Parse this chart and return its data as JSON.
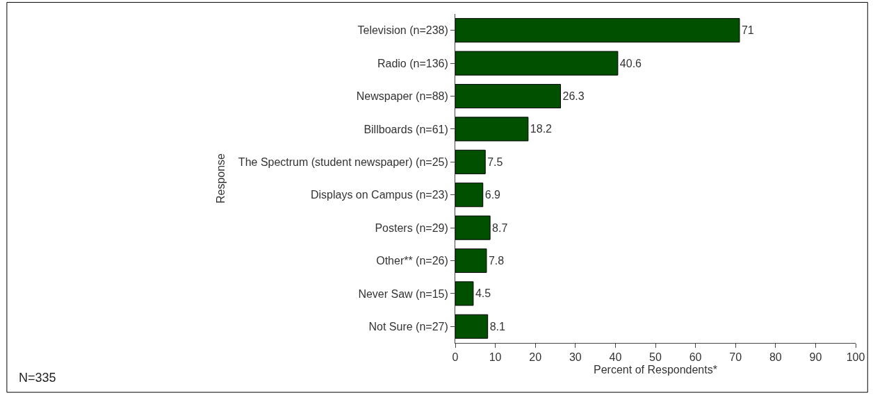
{
  "chart_data": {
    "type": "bar",
    "orientation": "horizontal",
    "categories": [
      "Television (n=238)",
      "Radio (n=136)",
      "Newspaper (n=88)",
      "Billboards (n=61)",
      "The Spectrum (student newspaper) (n=25)",
      "Displays on Campus (n=23)",
      "Posters (n=29)",
      "Other** (n=26)",
      "Never Saw (n=15)",
      "Not Sure (n=27)"
    ],
    "values": [
      71,
      40.6,
      26.3,
      18.2,
      7.5,
      6.9,
      8.7,
      7.8,
      4.5,
      8.1
    ],
    "color": "#005000",
    "data_labels": true,
    "xlim": [
      0,
      100
    ],
    "xticks": [
      0,
      10,
      20,
      30,
      40,
      50,
      60,
      70,
      80,
      90,
      100
    ],
    "xlabel": "Percent of Respondents*",
    "ylabel": "Response",
    "grid": false,
    "annotations": [
      "N=335"
    ]
  }
}
